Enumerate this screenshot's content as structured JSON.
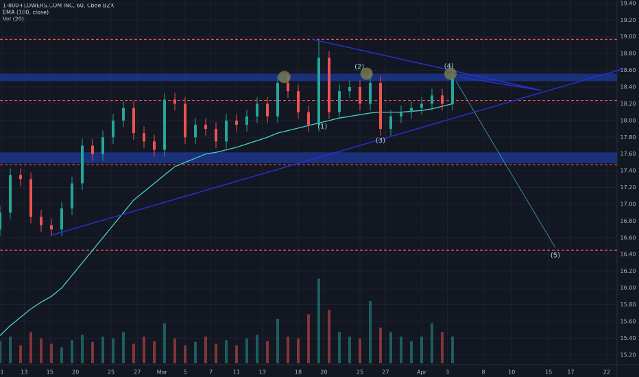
{
  "header": {
    "symbol": "1-800-FLOWERS.COM INC, 60, Cboe BZX",
    "indicator": "EMA (100, close)",
    "volume": "Vol (20)"
  },
  "chart_data": {
    "type": "candlestick",
    "up_color": "#26a69a",
    "down_color": "#ef5350",
    "ema_color": "#4dd0c4",
    "level_color": "#ef5350",
    "zone_color": "#1e3a9a",
    "trend_color": "#2a2fd0",
    "target_color": "#4aa3c8",
    "circle_color": "#8a8a4a",
    "x": [
      0,
      2,
      4,
      6,
      8,
      10,
      12,
      14,
      16,
      18,
      20,
      22,
      24,
      26,
      28,
      30,
      32,
      34,
      36,
      38,
      40,
      42,
      44,
      46,
      48,
      50,
      52,
      54,
      56,
      58,
      60,
      62,
      64,
      66,
      68,
      70,
      72,
      74,
      76,
      78,
      80,
      82,
      84,
      86,
      88
    ],
    "open": [
      16.7,
      16.9,
      17.35,
      17.3,
      16.85,
      16.75,
      16.7,
      16.95,
      17.25,
      17.7,
      17.6,
      17.8,
      18.0,
      18.15,
      17.85,
      17.75,
      17.65,
      18.25,
      18.2,
      17.8,
      17.95,
      17.9,
      17.75,
      18.0,
      17.95,
      18.05,
      18.2,
      18.05,
      18.45,
      18.35,
      18.1,
      17.95,
      18.75,
      18.1,
      18.35,
      18.4,
      18.2,
      18.45,
      17.9,
      18.05,
      18.1,
      18.15,
      18.2,
      18.3,
      18.2
    ],
    "high": [
      16.98,
      17.43,
      17.43,
      17.38,
      16.93,
      16.83,
      17.03,
      17.33,
      17.78,
      17.78,
      17.88,
      18.08,
      18.23,
      18.23,
      17.93,
      17.83,
      18.33,
      18.33,
      18.28,
      18.03,
      18.03,
      17.98,
      18.08,
      18.08,
      18.13,
      18.28,
      18.28,
      18.53,
      18.53,
      18.43,
      18.18,
      18.97,
      18.83,
      18.43,
      18.48,
      18.48,
      18.6,
      18.53,
      18.13,
      18.18,
      18.23,
      18.28,
      18.38,
      18.38,
      18.6
    ],
    "low": [
      16.62,
      16.82,
      17.22,
      16.77,
      16.67,
      16.62,
      16.62,
      16.87,
      17.17,
      17.52,
      17.52,
      17.72,
      17.92,
      17.77,
      17.67,
      17.57,
      17.57,
      18.12,
      17.72,
      17.72,
      17.82,
      17.67,
      17.67,
      17.87,
      17.87,
      17.97,
      17.97,
      17.97,
      18.27,
      18.02,
      17.87,
      17.87,
      18.02,
      18.02,
      18.27,
      18.12,
      18.12,
      17.82,
      17.82,
      17.97,
      18.02,
      18.07,
      18.12,
      18.12,
      18.12
    ],
    "close": [
      16.9,
      17.35,
      17.3,
      16.85,
      16.75,
      16.7,
      16.95,
      17.25,
      17.7,
      17.6,
      17.8,
      18.0,
      18.15,
      17.85,
      17.75,
      17.65,
      18.25,
      18.2,
      17.8,
      17.95,
      17.9,
      17.75,
      18.0,
      17.95,
      18.05,
      18.2,
      18.05,
      18.45,
      18.35,
      18.1,
      17.95,
      18.75,
      18.1,
      18.35,
      18.4,
      18.2,
      18.45,
      17.9,
      18.05,
      18.1,
      18.15,
      18.2,
      18.3,
      18.2,
      18.5
    ],
    "volume": [
      25,
      30,
      20,
      35,
      28,
      22,
      18,
      26,
      32,
      24,
      30,
      28,
      35,
      22,
      30,
      25,
      45,
      28,
      20,
      24,
      30,
      22,
      26,
      20,
      28,
      32,
      25,
      50,
      30,
      28,
      55,
      95,
      60,
      35,
      30,
      28,
      70,
      40,
      35,
      30,
      25,
      30,
      45,
      35,
      30
    ],
    "volume_lim": [
      0,
      100
    ],
    "ema": [
      15.43,
      15.55,
      15.65,
      15.75,
      15.83,
      15.9,
      16.0,
      16.15,
      16.3,
      16.45,
      16.6,
      16.75,
      16.9,
      17.05,
      17.15,
      17.25,
      17.35,
      17.45,
      17.5,
      17.55,
      17.6,
      17.62,
      17.65,
      17.68,
      17.72,
      17.76,
      17.8,
      17.85,
      17.88,
      17.91,
      17.94,
      17.97,
      18.0,
      18.03,
      18.05,
      18.07,
      18.09,
      18.1,
      18.1,
      18.1,
      18.11,
      18.12,
      18.14,
      18.17,
      18.2
    ],
    "levels": [
      18.97,
      18.24,
      17.47,
      16.45
    ],
    "zones": [
      [
        18.47,
        18.56
      ],
      [
        17.49,
        17.62
      ]
    ],
    "trend_lines": [
      {
        "x": [
          60.7,
          105.3
        ],
        "y": [
          18.97,
          18.36
        ]
      },
      {
        "x": [
          10,
          121.3
        ],
        "y": [
          16.63,
          18.62
        ]
      },
      {
        "x": [
          89.3,
          105.3
        ],
        "y": [
          18.52,
          18.36
        ]
      }
    ],
    "target_line": {
      "x": [
        88.7,
        108
      ],
      "y": [
        18.47,
        16.48
      ]
    },
    "circles": [
      {
        "x": 55.3,
        "y": 18.52
      },
      {
        "x": 71.3,
        "y": 18.56
      },
      {
        "x": 87.6,
        "y": 18.56
      }
    ],
    "wave_labels": [
      {
        "text": "(1)",
        "x": 62.7,
        "y": 17.93
      },
      {
        "text": "(2)",
        "x": 69.9,
        "y": 18.64
      },
      {
        "text": "(3)",
        "x": 74,
        "y": 17.76
      },
      {
        "text": "(4)",
        "x": 87.3,
        "y": 18.65
      },
      {
        "text": "(5)",
        "x": 108,
        "y": 16.39
      }
    ],
    "xlim": [
      0,
      120
    ],
    "ylim": [
      15.1,
      19.44
    ],
    "xticks": [
      {
        "value": 0.4,
        "label": "1"
      },
      {
        "value": 4.7,
        "label": "13"
      },
      {
        "value": 9.7,
        "label": "15"
      },
      {
        "value": 14.7,
        "label": "20"
      },
      {
        "value": 21.6,
        "label": "25"
      },
      {
        "value": 26.7,
        "label": "27"
      },
      {
        "value": 31.5,
        "label": "Mar"
      },
      {
        "value": 36,
        "label": "5"
      },
      {
        "value": 41,
        "label": "7"
      },
      {
        "value": 46,
        "label": "11"
      },
      {
        "value": 51,
        "label": "13"
      },
      {
        "value": 58,
        "label": "18"
      },
      {
        "value": 63,
        "label": "20"
      },
      {
        "value": 70,
        "label": "25"
      },
      {
        "value": 75,
        "label": "27"
      },
      {
        "value": 82,
        "label": "Apr"
      },
      {
        "value": 87,
        "label": "3"
      },
      {
        "value": 94,
        "label": "8"
      },
      {
        "value": 99.5,
        "label": "10"
      },
      {
        "value": 106.7,
        "label": "15"
      },
      {
        "value": 111,
        "label": "17"
      },
      {
        "value": 118,
        "label": "22"
      }
    ],
    "yticks": [
      {
        "value": 15.2,
        "label": "15.20"
      },
      {
        "value": 15.4,
        "label": "15.40"
      },
      {
        "value": 15.6,
        "label": "15.60"
      },
      {
        "value": 15.8,
        "label": "15.80"
      },
      {
        "value": 16.0,
        "label": "16.00"
      },
      {
        "value": 16.2,
        "label": "16.20"
      },
      {
        "value": 16.4,
        "label": "16.40"
      },
      {
        "value": 16.6,
        "label": "16.60"
      },
      {
        "value": 16.8,
        "label": "16.80"
      },
      {
        "value": 17.0,
        "label": "17.00"
      },
      {
        "value": 17.2,
        "label": "17.20"
      },
      {
        "value": 17.4,
        "label": "17.40"
      },
      {
        "value": 17.6,
        "label": "17.60"
      },
      {
        "value": 17.8,
        "label": "17.80"
      },
      {
        "value": 18.0,
        "label": "18.00"
      },
      {
        "value": 18.2,
        "label": "18.20"
      },
      {
        "value": 18.4,
        "label": "18.40"
      },
      {
        "value": 18.6,
        "label": "18.60"
      },
      {
        "value": 18.8,
        "label": "18.80"
      },
      {
        "value": 19.0,
        "label": "19.00"
      },
      {
        "value": 19.2,
        "label": "19.20"
      },
      {
        "value": 19.4,
        "label": "19.40"
      }
    ]
  }
}
